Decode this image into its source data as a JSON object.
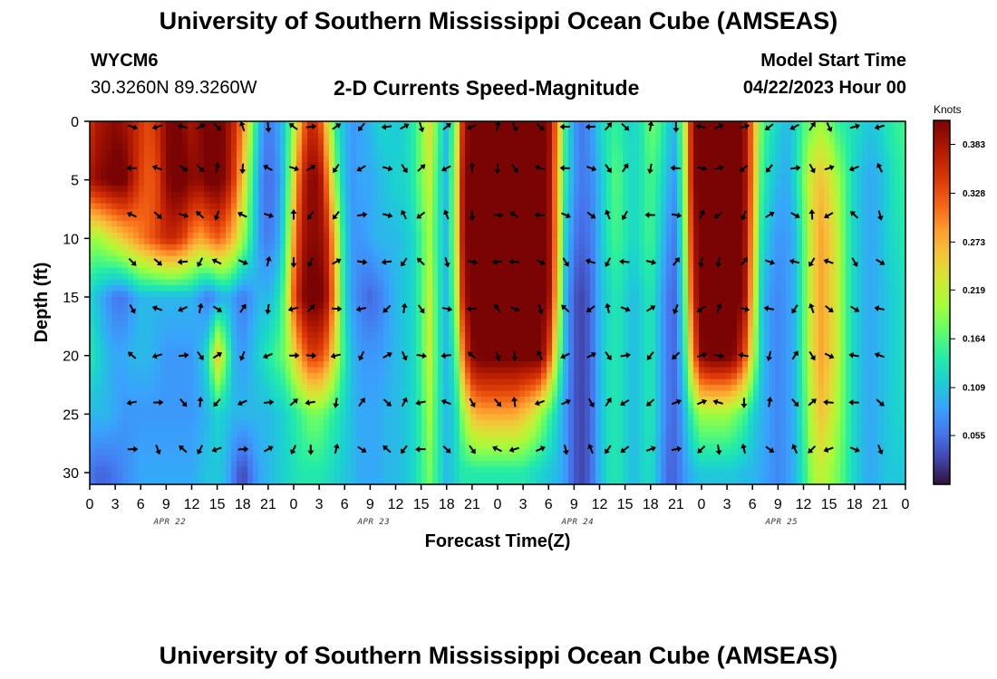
{
  "header": {
    "title": "University of Southern Mississippi Ocean Cube (AMSEAS)",
    "station": "WYCM6",
    "coords": "30.3260N  89.3260W",
    "chart_subtitle": "2-D Currents Speed-Magnitude",
    "model_label": "Model Start Time",
    "model_time": "04/22/2023 Hour 00"
  },
  "footer": {
    "title": "University of Southern Mississippi Ocean Cube (AMSEAS)"
  },
  "chart_data": {
    "type": "heatmap",
    "title": "2-D Currents Speed-Magnitude",
    "xlabel": "Forecast Time(Z)",
    "ylabel": "Depth (ft)",
    "x_ticks": [
      "0",
      "3",
      "6",
      "9",
      "12",
      "15",
      "18",
      "21",
      "0",
      "3",
      "6",
      "9",
      "12",
      "15",
      "18",
      "21",
      "0",
      "3",
      "6",
      "9",
      "12",
      "15",
      "18",
      "21",
      "0",
      "3",
      "6",
      "9",
      "12",
      "15",
      "18",
      "21",
      "0"
    ],
    "x_range_hours": [
      0,
      96
    ],
    "date_labels": [
      {
        "label": "APR 22",
        "hour": 9
      },
      {
        "label": "APR 23",
        "hour": 33
      },
      {
        "label": "APR 24",
        "hour": 57
      },
      {
        "label": "APR 25",
        "hour": 81
      }
    ],
    "y_ticks": [
      0,
      5,
      10,
      15,
      20,
      25,
      30
    ],
    "y_range_ft": [
      0,
      31
    ],
    "colorbar": {
      "units": "Knots",
      "range": [
        0.0,
        0.41
      ],
      "ticks": [
        "0.383",
        "0.328",
        "0.273",
        "0.219",
        "0.164",
        "0.109",
        "0.055"
      ],
      "tick_values": [
        0.383,
        0.328,
        0.273,
        0.219,
        0.164,
        0.109,
        0.055
      ]
    },
    "arrow_depths_ft": [
      0,
      4,
      8,
      12,
      16,
      20,
      24,
      28
    ],
    "arrow_hours": [
      5,
      8,
      11,
      13,
      15,
      18,
      21,
      24,
      26,
      29,
      32,
      35,
      37,
      39,
      42,
      45,
      48,
      50,
      53,
      56,
      59,
      61,
      63,
      66,
      69,
      72,
      74,
      77,
      80,
      83,
      85,
      87,
      90,
      93
    ],
    "speed_profile_knots": {
      "hours": [
        0,
        1,
        2,
        3,
        4,
        5,
        6,
        7,
        8,
        9,
        10,
        11,
        12,
        13,
        14,
        15,
        16,
        17,
        18,
        19,
        20,
        21,
        22,
        23,
        24,
        25,
        26,
        27,
        28,
        29,
        30,
        31,
        32,
        33,
        34,
        35,
        36,
        37,
        38,
        39,
        40,
        41,
        42,
        43,
        44,
        45,
        46,
        47,
        48,
        49,
        50,
        51,
        52,
        53,
        54,
        55,
        56,
        57,
        58,
        59,
        60,
        61,
        62,
        63,
        64,
        65,
        66,
        67,
        68,
        69,
        70,
        71,
        72,
        73,
        74,
        75,
        76,
        77,
        78,
        79,
        80,
        81,
        82,
        83,
        84,
        85,
        86,
        87,
        88,
        89,
        90,
        91,
        92,
        93,
        94,
        95,
        96
      ],
      "depths_ft": [
        0,
        5,
        10,
        15,
        20,
        25,
        30
      ],
      "rows": [
        [
          0.35,
          0.38,
          0.39,
          0.4,
          0.39,
          0.37,
          0.35,
          0.33,
          0.36,
          0.4,
          0.42,
          0.4,
          0.38,
          0.4,
          0.42,
          0.42,
          0.4,
          0.36,
          0.3,
          0.2,
          0.1,
          0.06,
          0.08,
          0.12,
          0.2,
          0.3,
          0.36,
          0.34,
          0.24,
          0.14,
          0.1,
          0.08,
          0.09,
          0.1,
          0.12,
          0.12,
          0.11,
          0.12,
          0.14,
          0.18,
          0.24,
          0.16,
          0.1,
          0.18,
          0.38,
          0.42,
          0.42,
          0.42,
          0.42,
          0.42,
          0.42,
          0.42,
          0.42,
          0.42,
          0.4,
          0.3,
          0.15,
          0.08,
          0.06,
          0.08,
          0.12,
          0.14,
          0.15,
          0.13,
          0.12,
          0.14,
          0.18,
          0.16,
          0.12,
          0.1,
          0.22,
          0.4,
          0.42,
          0.42,
          0.42,
          0.42,
          0.42,
          0.4,
          0.3,
          0.18,
          0.14,
          0.12,
          0.1,
          0.12,
          0.16,
          0.18,
          0.2,
          0.18,
          0.15,
          0.14,
          0.13,
          0.12,
          0.11,
          0.12,
          0.14,
          0.15,
          0.16
        ],
        [
          0.38,
          0.4,
          0.41,
          0.42,
          0.42,
          0.38,
          0.34,
          0.32,
          0.34,
          0.4,
          0.42,
          0.42,
          0.4,
          0.4,
          0.42,
          0.42,
          0.4,
          0.34,
          0.26,
          0.16,
          0.08,
          0.05,
          0.07,
          0.12,
          0.24,
          0.36,
          0.4,
          0.4,
          0.3,
          0.18,
          0.1,
          0.08,
          0.09,
          0.09,
          0.1,
          0.11,
          0.12,
          0.12,
          0.14,
          0.18,
          0.22,
          0.14,
          0.1,
          0.2,
          0.4,
          0.42,
          0.42,
          0.42,
          0.42,
          0.42,
          0.42,
          0.42,
          0.42,
          0.42,
          0.4,
          0.28,
          0.14,
          0.08,
          0.06,
          0.07,
          0.1,
          0.14,
          0.17,
          0.14,
          0.12,
          0.14,
          0.16,
          0.14,
          0.1,
          0.08,
          0.2,
          0.4,
          0.42,
          0.42,
          0.42,
          0.42,
          0.42,
          0.4,
          0.3,
          0.16,
          0.12,
          0.1,
          0.09,
          0.12,
          0.18,
          0.24,
          0.26,
          0.24,
          0.2,
          0.16,
          0.12,
          0.1,
          0.09,
          0.1,
          0.12,
          0.14,
          0.15
        ],
        [
          0.2,
          0.2,
          0.22,
          0.24,
          0.26,
          0.28,
          0.3,
          0.32,
          0.34,
          0.36,
          0.36,
          0.34,
          0.3,
          0.28,
          0.3,
          0.32,
          0.3,
          0.26,
          0.2,
          0.14,
          0.08,
          0.06,
          0.08,
          0.14,
          0.28,
          0.38,
          0.4,
          0.4,
          0.36,
          0.24,
          0.12,
          0.08,
          0.08,
          0.09,
          0.1,
          0.1,
          0.1,
          0.11,
          0.12,
          0.16,
          0.2,
          0.14,
          0.1,
          0.2,
          0.4,
          0.42,
          0.42,
          0.42,
          0.42,
          0.42,
          0.42,
          0.42,
          0.42,
          0.42,
          0.4,
          0.28,
          0.12,
          0.06,
          0.05,
          0.06,
          0.1,
          0.14,
          0.16,
          0.14,
          0.12,
          0.14,
          0.16,
          0.12,
          0.08,
          0.06,
          0.18,
          0.38,
          0.42,
          0.42,
          0.42,
          0.42,
          0.42,
          0.4,
          0.28,
          0.14,
          0.1,
          0.08,
          0.08,
          0.1,
          0.16,
          0.24,
          0.28,
          0.26,
          0.22,
          0.16,
          0.12,
          0.1,
          0.09,
          0.1,
          0.12,
          0.13,
          0.14
        ],
        [
          0.12,
          0.1,
          0.08,
          0.06,
          0.06,
          0.08,
          0.1,
          0.1,
          0.1,
          0.1,
          0.1,
          0.1,
          0.1,
          0.08,
          0.06,
          0.08,
          0.1,
          0.08,
          0.06,
          0.08,
          0.1,
          0.1,
          0.12,
          0.18,
          0.32,
          0.4,
          0.42,
          0.42,
          0.38,
          0.26,
          0.12,
          0.08,
          0.06,
          0.05,
          0.06,
          0.08,
          0.1,
          0.11,
          0.12,
          0.16,
          0.22,
          0.14,
          0.1,
          0.18,
          0.38,
          0.42,
          0.42,
          0.42,
          0.42,
          0.42,
          0.42,
          0.42,
          0.42,
          0.42,
          0.4,
          0.26,
          0.1,
          0.04,
          0.03,
          0.05,
          0.1,
          0.12,
          0.14,
          0.12,
          0.1,
          0.12,
          0.14,
          0.1,
          0.06,
          0.05,
          0.16,
          0.36,
          0.42,
          0.42,
          0.42,
          0.42,
          0.42,
          0.4,
          0.26,
          0.12,
          0.08,
          0.07,
          0.08,
          0.1,
          0.16,
          0.24,
          0.28,
          0.26,
          0.22,
          0.16,
          0.12,
          0.1,
          0.09,
          0.1,
          0.11,
          0.12,
          0.13
        ],
        [
          0.14,
          0.12,
          0.1,
          0.09,
          0.09,
          0.1,
          0.1,
          0.1,
          0.09,
          0.08,
          0.08,
          0.08,
          0.08,
          0.1,
          0.14,
          0.26,
          0.18,
          0.1,
          0.08,
          0.1,
          0.12,
          0.14,
          0.16,
          0.18,
          0.24,
          0.3,
          0.34,
          0.34,
          0.3,
          0.22,
          0.14,
          0.1,
          0.08,
          0.08,
          0.08,
          0.09,
          0.1,
          0.11,
          0.12,
          0.16,
          0.22,
          0.14,
          0.1,
          0.14,
          0.32,
          0.4,
          0.42,
          0.42,
          0.42,
          0.42,
          0.42,
          0.42,
          0.42,
          0.42,
          0.34,
          0.2,
          0.1,
          0.04,
          0.03,
          0.05,
          0.1,
          0.13,
          0.14,
          0.12,
          0.1,
          0.12,
          0.14,
          0.1,
          0.06,
          0.05,
          0.14,
          0.3,
          0.4,
          0.42,
          0.42,
          0.42,
          0.4,
          0.34,
          0.22,
          0.12,
          0.08,
          0.07,
          0.08,
          0.1,
          0.16,
          0.24,
          0.28,
          0.26,
          0.22,
          0.16,
          0.12,
          0.1,
          0.09,
          0.1,
          0.11,
          0.12,
          0.13
        ],
        [
          0.1,
          0.1,
          0.1,
          0.09,
          0.08,
          0.08,
          0.08,
          0.08,
          0.08,
          0.08,
          0.08,
          0.08,
          0.08,
          0.09,
          0.1,
          0.12,
          0.11,
          0.1,
          0.1,
          0.1,
          0.1,
          0.1,
          0.11,
          0.12,
          0.14,
          0.16,
          0.18,
          0.18,
          0.16,
          0.14,
          0.12,
          0.1,
          0.09,
          0.09,
          0.09,
          0.1,
          0.1,
          0.11,
          0.12,
          0.15,
          0.2,
          0.14,
          0.1,
          0.12,
          0.2,
          0.26,
          0.28,
          0.28,
          0.28,
          0.28,
          0.28,
          0.26,
          0.24,
          0.2,
          0.16,
          0.12,
          0.08,
          0.04,
          0.03,
          0.05,
          0.1,
          0.13,
          0.14,
          0.12,
          0.1,
          0.12,
          0.14,
          0.1,
          0.06,
          0.05,
          0.1,
          0.16,
          0.2,
          0.2,
          0.2,
          0.2,
          0.18,
          0.16,
          0.12,
          0.1,
          0.08,
          0.07,
          0.08,
          0.1,
          0.15,
          0.22,
          0.26,
          0.24,
          0.2,
          0.16,
          0.12,
          0.1,
          0.09,
          0.1,
          0.11,
          0.12,
          0.12
        ],
        [
          0.06,
          0.05,
          0.05,
          0.06,
          0.07,
          0.08,
          0.09,
          0.09,
          0.09,
          0.09,
          0.09,
          0.09,
          0.09,
          0.1,
          0.11,
          0.11,
          0.1,
          0.06,
          0.03,
          0.06,
          0.09,
          0.1,
          0.11,
          0.12,
          0.13,
          0.14,
          0.14,
          0.14,
          0.13,
          0.12,
          0.11,
          0.1,
          0.09,
          0.09,
          0.09,
          0.1,
          0.1,
          0.11,
          0.12,
          0.15,
          0.18,
          0.14,
          0.1,
          0.12,
          0.14,
          0.14,
          0.14,
          0.14,
          0.14,
          0.14,
          0.14,
          0.14,
          0.13,
          0.12,
          0.11,
          0.1,
          0.08,
          0.04,
          0.03,
          0.05,
          0.1,
          0.13,
          0.14,
          0.12,
          0.1,
          0.12,
          0.13,
          0.09,
          0.05,
          0.05,
          0.08,
          0.1,
          0.11,
          0.11,
          0.11,
          0.11,
          0.11,
          0.1,
          0.1,
          0.09,
          0.08,
          0.07,
          0.08,
          0.1,
          0.14,
          0.2,
          0.22,
          0.2,
          0.18,
          0.15,
          0.12,
          0.1,
          0.09,
          0.1,
          0.11,
          0.11,
          0.11
        ]
      ]
    }
  }
}
